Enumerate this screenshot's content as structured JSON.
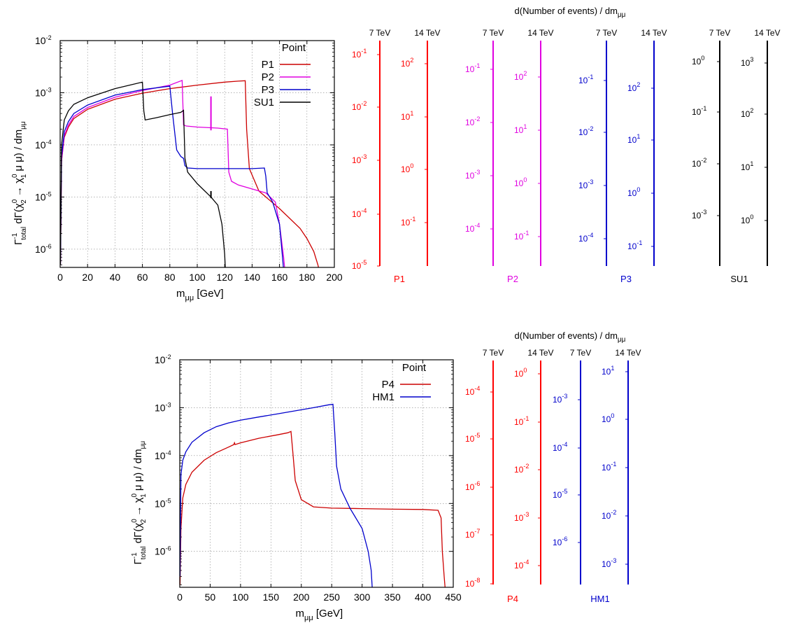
{
  "colors": {
    "P1": "#cc0000",
    "P2": "#e000e0",
    "P3": "#0000cc",
    "SU1": "#000000",
    "P4": "#cc0000",
    "HM1": "#0000cc",
    "P4_scale": "#ff0000",
    "P1_scale": "#ff0000"
  },
  "chart_data": [
    {
      "type": "line",
      "xlabel": "m_μμ [GeV]",
      "ylabel": "Γ_total^-1 dΓ(χ_2^0 → χ_1^0 μ μ) / dm_μμ",
      "xlim": [
        0,
        200
      ],
      "ylim_log10": [
        -6.35,
        -2
      ],
      "xticks": [
        "0",
        "20",
        "40",
        "60",
        "80",
        "100",
        "120",
        "140",
        "160",
        "180",
        "200"
      ],
      "yticks": [
        "10^-6",
        "10^-5",
        "10^-4",
        "10^-3",
        "10^-2"
      ],
      "grid": true,
      "legend_title": "Point",
      "legend_position": "top-right",
      "series": [
        {
          "name": "P1",
          "x": [
            0.2,
            1,
            3,
            6,
            10,
            20,
            40,
            60,
            80,
            100,
            120,
            130,
            135,
            136,
            138,
            145,
            160,
            175,
            180,
            185,
            188,
            190,
            192
          ],
          "y": [
            5e-07,
            5e-05,
            0.00014,
            0.00022,
            0.00032,
            0.00048,
            0.00075,
            0.00098,
            0.0012,
            0.0014,
            0.0016,
            0.00167,
            0.0017,
            0.0002,
            3.5e-05,
            1.3e-05,
            6e-06,
            2.5e-06,
            1.6e-06,
            9e-07,
            5e-07,
            3e-07,
            2e-07
          ]
        },
        {
          "name": "P2",
          "x": [
            0.2,
            1,
            3,
            6,
            10,
            20,
            40,
            60,
            80,
            89,
            90,
            92,
            100,
            115,
            122,
            123,
            125,
            130,
            150,
            157,
            160,
            163,
            165
          ],
          "y": [
            5e-07,
            5e-05,
            0.00015,
            0.00024,
            0.00035,
            0.00052,
            0.00082,
            0.0011,
            0.0014,
            0.00172,
            0.00024,
            0.00023,
            0.00022,
            0.00021,
            0.0002,
            3e-05,
            2e-05,
            1.7e-05,
            1.2e-05,
            8e-06,
            3e-06,
            7e-07,
            2e-07
          ]
        },
        {
          "name": "P3",
          "x": [
            0.2,
            1,
            3,
            6,
            10,
            20,
            40,
            60,
            79,
            80,
            82,
            85,
            88,
            90,
            91,
            93,
            100,
            120,
            140,
            149,
            150,
            151,
            155,
            160,
            162,
            164
          ],
          "y": [
            5e-07,
            6e-05,
            0.00018,
            0.00028,
            0.0004,
            0.00058,
            0.0009,
            0.00115,
            0.00133,
            0.00134,
            0.0004,
            8e-05,
            6e-05,
            5.5e-05,
            4e-05,
            3.6e-05,
            3.5e-05,
            3.5e-05,
            3.5e-05,
            3.6e-05,
            2.5e-05,
            1.2e-05,
            8e-06,
            3e-06,
            8e-07,
            2e-07
          ]
        },
        {
          "name": "SU1",
          "x": [
            0.2,
            1,
            3,
            6,
            10,
            20,
            40,
            60,
            61,
            62,
            70,
            80,
            88,
            90,
            91,
            93,
            100,
            110,
            115,
            118,
            120,
            121
          ],
          "y": [
            5e-07,
            0.0001,
            0.0003,
            0.00045,
            0.0006,
            0.0008,
            0.0012,
            0.0016,
            0.00045,
            0.0003,
            0.00033,
            0.00038,
            0.00042,
            0.00046,
            5.5e-05,
            3e-05,
            1.8e-05,
            1e-05,
            7e-06,
            3e-06,
            8e-07,
            2e-07
          ]
        }
      ],
      "markers": [
        {
          "series": "P2",
          "x": 110,
          "y_from": 0.00019,
          "y_to": 0.00085
        },
        {
          "series": "SU1",
          "x": 110,
          "y_from": 9.5e-06,
          "y_to": 1.3e-05
        }
      ]
    },
    {
      "type": "line",
      "xlabel": "m_μμ [GeV]",
      "ylabel": "Γ_total^-1 dΓ(χ_2^0 → χ_1^0 μ μ) / dm_μμ",
      "xlim": [
        0,
        450
      ],
      "ylim_log10": [
        -6.75,
        -2
      ],
      "xticks": [
        "0",
        "50",
        "100",
        "150",
        "200",
        "250",
        "300",
        "350",
        "400",
        "450"
      ],
      "yticks": [
        "10^-6",
        "10^-5",
        "10^-4",
        "10^-3",
        "10^-2"
      ],
      "grid": true,
      "legend_title": "Point",
      "legend_position": "top-right",
      "series": [
        {
          "name": "P4",
          "x": [
            0.5,
            2,
            5,
            10,
            20,
            40,
            60,
            80,
            89,
            90,
            91,
            100,
            130,
            160,
            178,
            183,
            186,
            190,
            200,
            220,
            250,
            300,
            350,
            400,
            425,
            430,
            432,
            435,
            437
          ],
          "y": [
            2e-07,
            3e-06,
            1.3e-05,
            2.5e-05,
            4.5e-05,
            8e-05,
            0.000115,
            0.00015,
            0.00017,
            0.000185,
            0.00017,
            0.000185,
            0.00023,
            0.00027,
            0.0003,
            0.00032,
            0.00012,
            3e-05,
            1.2e-05,
            8.5e-06,
            8e-06,
            7.8e-06,
            7.6e-06,
            7.5e-06,
            7.2e-06,
            5e-06,
            1e-06,
            3e-07,
            1.5e-07
          ]
        },
        {
          "name": "HM1",
          "x": [
            0.5,
            2,
            5,
            10,
            20,
            40,
            60,
            80,
            100,
            130,
            160,
            190,
            220,
            245,
            252,
            255,
            258,
            265,
            280,
            300,
            310,
            315,
            317
          ],
          "y": [
            3e-07,
            4e-05,
            8e-05,
            0.00012,
            0.00019,
            0.0003,
            0.0004,
            0.00048,
            0.00055,
            0.00064,
            0.00074,
            0.00086,
            0.001,
            0.00115,
            0.00118,
            0.0003,
            6e-05,
            2e-05,
            8e-06,
            3e-06,
            1e-06,
            4e-07,
            1.5e-07
          ]
        }
      ]
    }
  ],
  "rate_panels": {
    "top_title": "d(Number of events) / dm_μμ",
    "bottom_title": "d(Number of events) / dm_μμ",
    "energy_7": "7 TeV",
    "energy_14": "14 TeV",
    "top": [
      {
        "name": "P1",
        "color": "#ff0000",
        "ticks7": [
          "10^-1",
          "10^-2",
          "10^-3",
          "10^-4",
          "10^-5"
        ],
        "ticks14": [
          "10^2",
          "10^1",
          "10^0",
          "10^-1"
        ]
      },
      {
        "name": "P2",
        "color": "#e000e0",
        "ticks7": [
          "10^-1",
          "10^-2",
          "10^-3",
          "10^-4"
        ],
        "ticks14": [
          "10^2",
          "10^1",
          "10^0",
          "10^-1"
        ]
      },
      {
        "name": "P3",
        "color": "#0000cc",
        "ticks7": [
          "10^-1",
          "10^-2",
          "10^-3",
          "10^-4"
        ],
        "ticks14": [
          "10^2",
          "10^1",
          "10^0",
          "10^-1"
        ]
      },
      {
        "name": "SU1",
        "color": "#000000",
        "ticks7": [
          "10^0",
          "10^-1",
          "10^-2",
          "10^-3"
        ],
        "ticks14": [
          "10^3",
          "10^2",
          "10^1",
          "10^0"
        ]
      }
    ],
    "bottom": [
      {
        "name": "P4",
        "color": "#ff0000",
        "ticks7": [
          "10^-4",
          "10^-5",
          "10^-6",
          "10^-7",
          "10^-8"
        ],
        "ticks14": [
          "10^0",
          "10^-1",
          "10^-2",
          "10^-3",
          "10^-4"
        ]
      },
      {
        "name": "HM1",
        "color": "#0000cc",
        "ticks7": [
          "10^-3",
          "10^-4",
          "10^-5",
          "10^-6"
        ],
        "ticks14": [
          "10^1",
          "10^0",
          "10^-1",
          "10^-2",
          "10^-3"
        ]
      }
    ]
  }
}
